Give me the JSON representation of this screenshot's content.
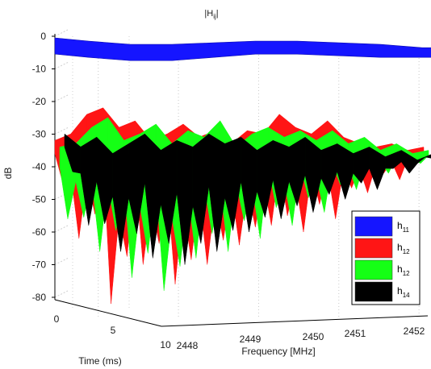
{
  "chart_data": {
    "type": "area",
    "title_main": "|H",
    "title_sub": "ij",
    "title_end": "|",
    "xlabel": "Frequency [MHz]",
    "ylabel": "Time (ms)",
    "zlabel": "dB",
    "x_ticks": [
      "2448",
      "2449",
      "2450",
      "2451",
      "2452"
    ],
    "y_ticks": [
      "0",
      "5",
      "10"
    ],
    "z_ticks": [
      "0",
      "-10",
      "-20",
      "-30",
      "-40",
      "-50",
      "-60",
      "-70",
      "-80"
    ],
    "xlim": [
      2447.6,
      2452.2
    ],
    "ylim": [
      0,
      10
    ],
    "zlim": [
      -85,
      0
    ],
    "grid": true,
    "legend_position": "bottom-right",
    "series": [
      {
        "name_main": "h",
        "name_sub": "11",
        "color": "#1515ff",
        "x": [
          2447.6,
          2448.0,
          2448.5,
          2449.0,
          2449.5,
          2450.0,
          2450.5,
          2451.0,
          2451.5,
          2452.0,
          2452.2
        ],
        "top": [
          0,
          -1,
          -2,
          -2,
          -1.5,
          -1,
          -1,
          -1.5,
          -2,
          -3,
          -3
        ],
        "bottom": [
          -3,
          -4,
          -5,
          -5,
          -4,
          -3,
          -3,
          -3.5,
          -4,
          -4,
          -4
        ]
      },
      {
        "name_main": "h",
        "name_sub": "12",
        "color": "#ff1515",
        "x": [
          2447.6,
          2447.8,
          2448.0,
          2448.2,
          2448.4,
          2448.6,
          2448.8,
          2449.0,
          2449.2,
          2449.4,
          2449.6,
          2449.8,
          2450.0,
          2450.2,
          2450.4,
          2450.6,
          2450.8,
          2451.0,
          2451.2,
          2451.4,
          2451.6,
          2451.8,
          2452.0,
          2452.2
        ],
        "top": [
          -32,
          -30,
          -24,
          -22,
          -28,
          -26,
          -32,
          -30,
          -27,
          -31,
          -29,
          -33,
          -29,
          -30,
          -24,
          -28,
          -30,
          -26,
          -31,
          -33,
          -34,
          -33,
          -35,
          -34
        ],
        "bottom": [
          -40,
          -55,
          -62,
          -52,
          -82,
          -58,
          -70,
          -62,
          -76,
          -66,
          -70,
          -60,
          -64,
          -58,
          -55,
          -60,
          -52,
          -56,
          -50,
          -48,
          -45,
          -44,
          -40,
          -38
        ]
      },
      {
        "name_main": "h",
        "name_sub": "12",
        "color": "#15ff15",
        "x": [
          2447.6,
          2447.8,
          2448.0,
          2448.2,
          2448.4,
          2448.6,
          2448.8,
          2449.0,
          2449.2,
          2449.4,
          2449.6,
          2449.8,
          2450.0,
          2450.2,
          2450.4,
          2450.6,
          2450.8,
          2451.0,
          2451.2,
          2451.4,
          2451.6,
          2451.8,
          2452.0,
          2452.2
        ],
        "top": [
          -34,
          -33,
          -28,
          -25,
          -32,
          -30,
          -27,
          -33,
          -29,
          -31,
          -26,
          -34,
          -30,
          -28,
          -31,
          -29,
          -32,
          -29,
          -33,
          -31,
          -35,
          -33,
          -36,
          -35
        ],
        "bottom": [
          -46,
          -56,
          -60,
          -66,
          -58,
          -74,
          -64,
          -78,
          -68,
          -60,
          -66,
          -56,
          -62,
          -52,
          -58,
          -50,
          -54,
          -49,
          -47,
          -46,
          -42,
          -41,
          -39,
          -38
        ]
      },
      {
        "name_main": "h",
        "name_sub": "14",
        "color": "#000000",
        "x": [
          2447.6,
          2447.8,
          2448.0,
          2448.2,
          2448.4,
          2448.6,
          2448.8,
          2449.0,
          2449.2,
          2449.4,
          2449.6,
          2449.8,
          2450.0,
          2450.2,
          2450.4,
          2450.6,
          2450.8,
          2451.0,
          2451.2,
          2451.4,
          2451.6,
          2451.8,
          2452.0,
          2452.2
        ],
        "top": [
          -30,
          -34,
          -31,
          -36,
          -33,
          -30,
          -35,
          -32,
          -34,
          -30,
          -33,
          -31,
          -35,
          -32,
          -34,
          -31,
          -35,
          -33,
          -36,
          -34,
          -37,
          -35,
          -38,
          -36
        ],
        "bottom": [
          -38,
          -50,
          -58,
          -62,
          -66,
          -60,
          -68,
          -64,
          -70,
          -62,
          -66,
          -58,
          -60,
          -56,
          -55,
          -54,
          -52,
          -50,
          -48,
          -47,
          -44,
          -42,
          -40,
          -39
        ]
      }
    ]
  }
}
